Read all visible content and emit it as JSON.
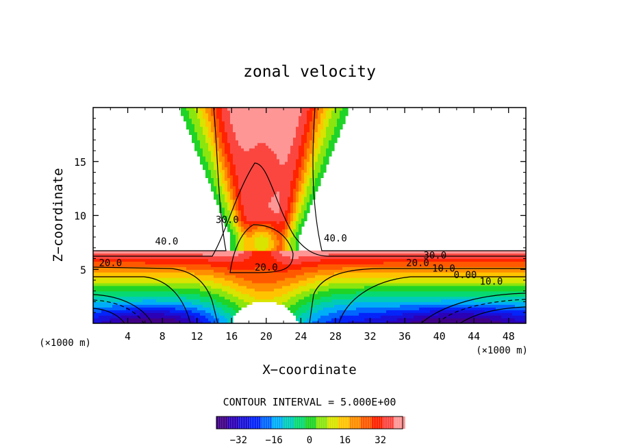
{
  "chart_data": {
    "type": "heatmap",
    "title": "zonal velocity",
    "xlabel": "X−coordinate",
    "ylabel": "Z−coordinate",
    "x_unit_left": "(×1000 m)",
    "x_unit_right": "(×1000 m)",
    "xticks": [
      "4",
      "8",
      "12",
      "16",
      "20",
      "24",
      "28",
      "32",
      "36",
      "40",
      "44",
      "48"
    ],
    "yticks": [
      "5",
      "10",
      "15"
    ],
    "xlim": [
      0,
      50
    ],
    "ylim": [
      0,
      20
    ],
    "contour_labels": [
      {
        "text": "40.0",
        "x": 8.5,
        "y": 7.3
      },
      {
        "text": "30.0",
        "x": 15.5,
        "y": 9.3
      },
      {
        "text": "20.0",
        "x": 2.0,
        "y": 5.3
      },
      {
        "text": "20.0",
        "x": 20.0,
        "y": 4.9
      },
      {
        "text": "40.0",
        "x": 28.0,
        "y": 7.6
      },
      {
        "text": "30.0",
        "x": 39.5,
        "y": 6.0
      },
      {
        "text": "20.0",
        "x": 37.5,
        "y": 5.3
      },
      {
        "text": "10.0",
        "x": 40.5,
        "y": 4.8
      },
      {
        "text": "0.00",
        "x": 43.0,
        "y": 4.2
      },
      {
        "text": "10.0",
        "x": 46.0,
        "y": 3.6
      }
    ],
    "contour_interval_text": "CONTOUR INTERVAL = 5.000E+00",
    "colorbar": {
      "min": -42,
      "max": 42,
      "step": 5,
      "ticks": [
        "−32",
        "−16",
        "0",
        "16",
        "32"
      ]
    }
  }
}
